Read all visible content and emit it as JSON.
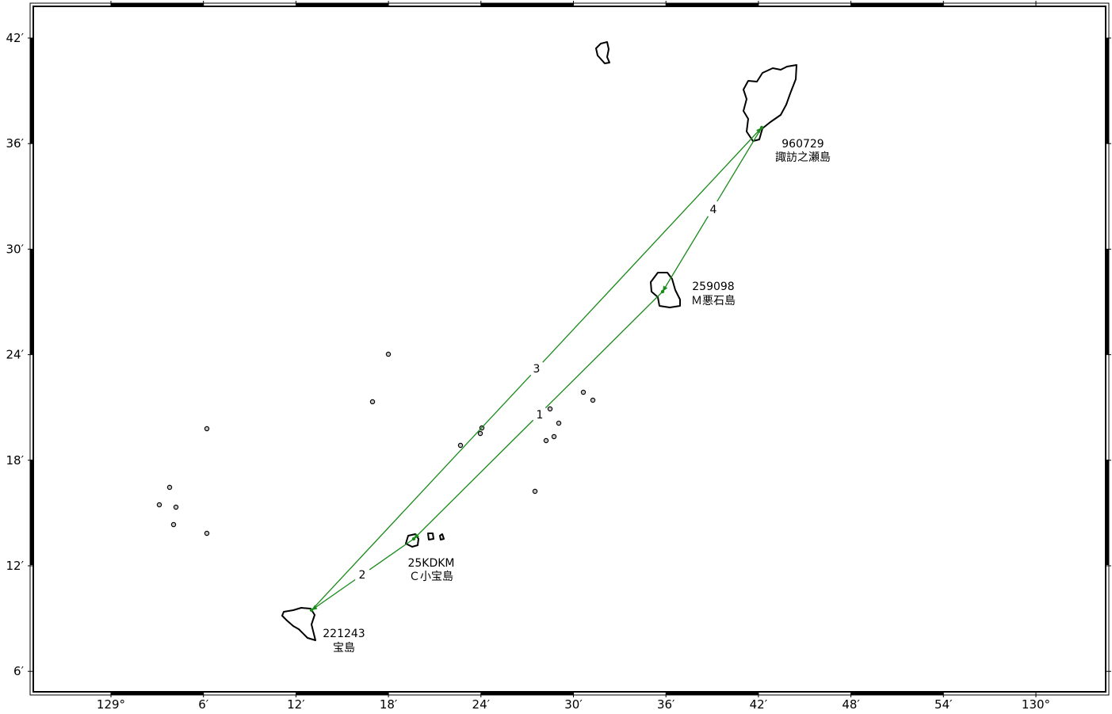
{
  "map": {
    "lon_ticks": [
      "129°",
      "6′",
      "12′",
      "18′",
      "24′",
      "30′",
      "36′",
      "42′",
      "48′",
      "54′",
      "130°"
    ],
    "lat_ticks": [
      "42′",
      "36′",
      "30′",
      "24′",
      "18′",
      "12′",
      "6′"
    ],
    "baseline_color": "#1a8a1a",
    "stations": [
      {
        "id": "960729",
        "name": "諏訪之瀬島"
      },
      {
        "id": "259098",
        "name": "Ｍ悪石島"
      },
      {
        "id": "25KDKM",
        "name": "Ｃ小宝島"
      },
      {
        "id": "221243",
        "name": "宝島"
      }
    ],
    "baselines": [
      {
        "label": "1",
        "from": "259098",
        "to": "25KDKM"
      },
      {
        "label": "2",
        "from": "25KDKM",
        "to": "221243"
      },
      {
        "label": "3",
        "from": "221243",
        "to": "960729"
      },
      {
        "label": "4",
        "from": "960729",
        "to": "259098"
      }
    ]
  }
}
